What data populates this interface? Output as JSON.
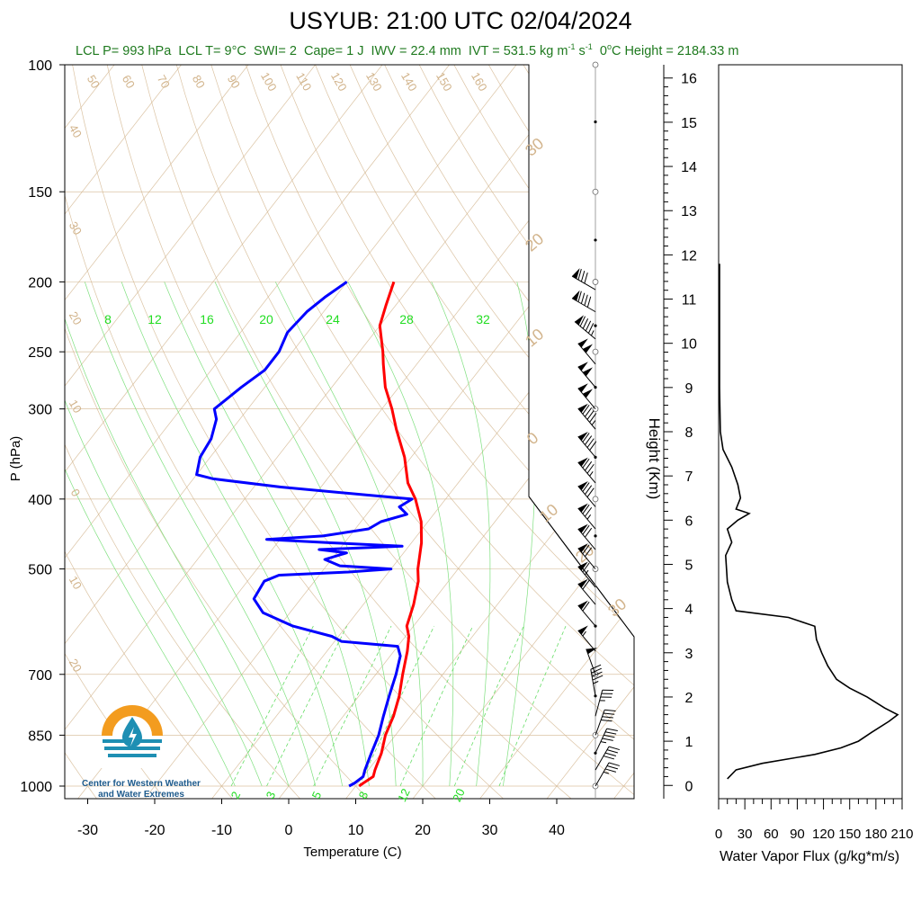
{
  "header": {
    "title": "USYUB: 21:00 UTC 02/04/2024",
    "subtitle": {
      "lcl_p": "LCL P= 993 hPa",
      "lcl_t": "LCL T= 9°C",
      "swi": "SWI= 2",
      "cape": "Cape= 1 J",
      "iwv": "IWV = 22.4 mm",
      "ivt": "IVT = 531.5 kg m",
      "ivt_exp1": "-1",
      "ivt_s": " s",
      "ivt_exp2": "-1",
      "zero_height_a": "0",
      "zero_height_b": "C Height = 2184.33 m",
      "zero_height_sup": "o"
    }
  },
  "logo": {
    "line1": "Center for Western Weather",
    "line2": "and Water Extremes"
  },
  "colors": {
    "temperature": "#ff0000",
    "dewpoint": "#0000ff",
    "dry_adiabat": "#d2b48c",
    "moist": "#33cc33",
    "flux": "#000000"
  },
  "chart_data": [
    {
      "type": "line",
      "name": "skew-t",
      "xlabel": "Temperature (C)",
      "ylabel": "P (hPa)",
      "xlim": [
        -34,
        52
      ],
      "ylim": [
        1000,
        100
      ],
      "y_scale": "log",
      "x_ticks": [
        -30,
        -20,
        -10,
        0,
        10,
        20,
        30,
        40
      ],
      "y_ticks": [
        100,
        150,
        200,
        250,
        300,
        400,
        500,
        700,
        850,
        1000
      ],
      "mixing_ratio_labels": [
        "2",
        "3",
        "5",
        "8",
        "12",
        "20"
      ],
      "moist_adiabat_labels": [
        "8",
        "12",
        "16",
        "20",
        "24",
        "28",
        "32"
      ],
      "dry_adiabat_labels": [
        "50",
        "60",
        "70",
        "80",
        "90",
        "100",
        "110",
        "120",
        "130",
        "140",
        "150",
        "160"
      ],
      "isotherm_labels": [
        "40",
        "30",
        "20",
        "10",
        "0",
        "10",
        "20"
      ],
      "skew_labels_right": [
        "30",
        "20",
        "10",
        "0",
        "10",
        "20",
        "30"
      ],
      "series": [
        {
          "name": "Temperature",
          "points": [
            [
              1000,
              10.5
            ],
            [
              990,
              10.8
            ],
            [
              970,
              11.5
            ],
            [
              950,
              11.0
            ],
            [
              900,
              10.0
            ],
            [
              850,
              8.5
            ],
            [
              800,
              7.5
            ],
            [
              750,
              6.0
            ],
            [
              700,
              4.0
            ],
            [
              650,
              2.0
            ],
            [
              620,
              0.5
            ],
            [
              600,
              -1.0
            ],
            [
              560,
              -2.5
            ],
            [
              520,
              -4.5
            ],
            [
              500,
              -6.0
            ],
            [
              460,
              -8.5
            ],
            [
              430,
              -11.0
            ],
            [
              400,
              -14.5
            ],
            [
              380,
              -17.5
            ],
            [
              350,
              -21.0
            ],
            [
              320,
              -25.5
            ],
            [
              300,
              -28.5
            ],
            [
              280,
              -32.0
            ],
            [
              260,
              -35.0
            ],
            [
              250,
              -36.5
            ],
            [
              230,
              -40.0
            ],
            [
              215,
              -41.5
            ],
            [
              200,
              -43.0
            ]
          ]
        },
        {
          "name": "Dewpoint",
          "points": [
            [
              1000,
              9.0
            ],
            [
              990,
              9.5
            ],
            [
              970,
              10.0
            ],
            [
              950,
              9.5
            ],
            [
              900,
              8.5
            ],
            [
              850,
              7.5
            ],
            [
              800,
              6.0
            ],
            [
              750,
              4.5
            ],
            [
              700,
              3.0
            ],
            [
              660,
              1.5
            ],
            [
              640,
              0.0
            ],
            [
              630,
              -9.0
            ],
            [
              620,
              -11.0
            ],
            [
              600,
              -18.0
            ],
            [
              575,
              -24.0
            ],
            [
              550,
              -27.0
            ],
            [
              520,
              -27.5
            ],
            [
              510,
              -26.0
            ],
            [
              505,
              -16.0
            ],
            [
              500,
              -10.0
            ],
            [
              495,
              -18.0
            ],
            [
              485,
              -21.0
            ],
            [
              475,
              -18.5
            ],
            [
              470,
              -23.0
            ],
            [
              465,
              -11.0
            ],
            [
              460,
              -22.0
            ],
            [
              455,
              -32.0
            ],
            [
              450,
              -24.0
            ],
            [
              440,
              -18.0
            ],
            [
              430,
              -17.0
            ],
            [
              420,
              -14.0
            ],
            [
              410,
              -16.0
            ],
            [
              400,
              -15.0
            ],
            [
              395,
              -22.0
            ],
            [
              385,
              -36.0
            ],
            [
              375,
              -47.0
            ],
            [
              370,
              -50.0
            ],
            [
              350,
              -51.5
            ],
            [
              330,
              -52.0
            ],
            [
              310,
              -53.5
            ],
            [
              300,
              -55.0
            ],
            [
              280,
              -53.5
            ],
            [
              265,
              -52.0
            ],
            [
              250,
              -52.0
            ],
            [
              235,
              -53.0
            ],
            [
              220,
              -52.5
            ],
            [
              210,
              -51.5
            ],
            [
              200,
              -50.0
            ]
          ]
        }
      ]
    },
    {
      "type": "line",
      "name": "water-vapor-flux",
      "xlabel": "Water Vapor Flux (g/kg*m/s)",
      "ylabel": "Height (Km)",
      "xlim": [
        0,
        210
      ],
      "ylim": [
        -0.3,
        16.3
      ],
      "x_ticks": [
        "0",
        "30",
        "60",
        "90",
        "120",
        "150",
        "180",
        "210"
      ],
      "y_ticks": [
        "0",
        "1",
        "2",
        "3",
        "4",
        "5",
        "6",
        "7",
        "8",
        "9",
        "10",
        "11",
        "12",
        "13",
        "14",
        "15",
        "16"
      ],
      "series": [
        {
          "name": "flux",
          "points": [
            [
              10,
              0.15
            ],
            [
              20,
              0.35
            ],
            [
              50,
              0.5
            ],
            [
              110,
              0.7
            ],
            [
              140,
              0.85
            ],
            [
              160,
              1.0
            ],
            [
              175,
              1.2
            ],
            [
              195,
              1.45
            ],
            [
              205,
              1.6
            ],
            [
              190,
              1.75
            ],
            [
              170,
              2.0
            ],
            [
              150,
              2.2
            ],
            [
              135,
              2.4
            ],
            [
              125,
              2.7
            ],
            [
              118,
              3.0
            ],
            [
              112,
              3.3
            ],
            [
              110,
              3.6
            ],
            [
              80,
              3.8
            ],
            [
              20,
              3.95
            ],
            [
              15,
              4.2
            ],
            [
              10,
              4.6
            ],
            [
              8,
              5.2
            ],
            [
              15,
              5.5
            ],
            [
              10,
              5.8
            ],
            [
              22,
              6.0
            ],
            [
              35,
              6.15
            ],
            [
              20,
              6.25
            ],
            [
              25,
              6.5
            ],
            [
              22,
              6.8
            ],
            [
              15,
              7.2
            ],
            [
              5,
              7.6
            ],
            [
              2,
              8.0
            ],
            [
              1,
              9.0
            ],
            [
              1,
              10.5
            ],
            [
              1,
              11.8
            ]
          ]
        }
      ]
    },
    {
      "type": "scatter",
      "name": "wind-barbs",
      "points": [
        [
          1000,
          30,
          35
        ],
        [
          950,
          30,
          40
        ],
        [
          900,
          25,
          45
        ],
        [
          850,
          20,
          40
        ],
        [
          800,
          15,
          35
        ],
        [
          750,
          350,
          45
        ],
        [
          700,
          340,
          50
        ],
        [
          650,
          320,
          55
        ],
        [
          600,
          320,
          60
        ],
        [
          560,
          320,
          60
        ],
        [
          530,
          320,
          65
        ],
        [
          500,
          320,
          70
        ],
        [
          470,
          320,
          70
        ],
        [
          440,
          320,
          75
        ],
        [
          410,
          320,
          80
        ],
        [
          380,
          320,
          85
        ],
        [
          350,
          320,
          90
        ],
        [
          320,
          320,
          95
        ],
        [
          300,
          320,
          100
        ],
        [
          280,
          320,
          100
        ],
        [
          260,
          320,
          100
        ],
        [
          240,
          310,
          95
        ],
        [
          220,
          300,
          90
        ],
        [
          205,
          300,
          80
        ]
      ]
    }
  ]
}
